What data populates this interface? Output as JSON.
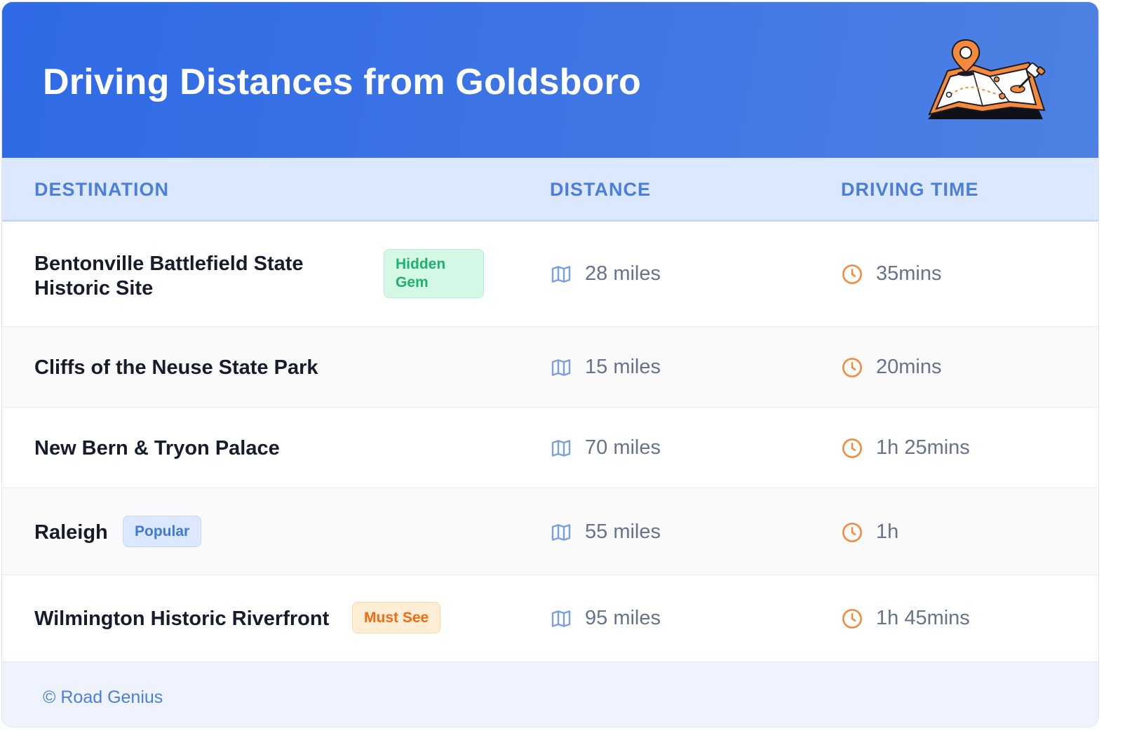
{
  "header": {
    "title": "Driving Distances from Goldsboro",
    "illustration_icon": "folded-map-with-pins-icon"
  },
  "columns": {
    "destination": "DESTINATION",
    "distance": "DISTANCE",
    "driving_time": "DRIVING TIME"
  },
  "rows": [
    {
      "destination": "Bentonville Battlefield State Historic Site",
      "badge": "Hidden Gem",
      "badge_style": "green",
      "distance": "28 miles",
      "time": "35mins"
    },
    {
      "destination": "Cliffs of the Neuse State Park",
      "badge": "",
      "badge_style": "",
      "distance": "15 miles",
      "time": "20mins"
    },
    {
      "destination": "New Bern & Tryon Palace",
      "badge": "",
      "badge_style": "",
      "distance": "70 miles",
      "time": "1h 25mins"
    },
    {
      "destination": "Raleigh",
      "badge": "Popular",
      "badge_style": "blue",
      "distance": "55 miles",
      "time": "1h"
    },
    {
      "destination": "Wilmington Historic Riverfront",
      "badge": "Must See",
      "badge_style": "orange",
      "distance": "95 miles",
      "time": "1h 45mins"
    }
  ],
  "icons": {
    "distance": "map-icon",
    "time": "clock-icon"
  },
  "colors": {
    "header_from": "#2f6ae6",
    "header_to": "#4d82e2",
    "accent_blue": "#4b7fd9",
    "accent_orange": "#f08a3c",
    "green": "#1fb16e"
  },
  "footer": {
    "credit": "© Road Genius"
  }
}
